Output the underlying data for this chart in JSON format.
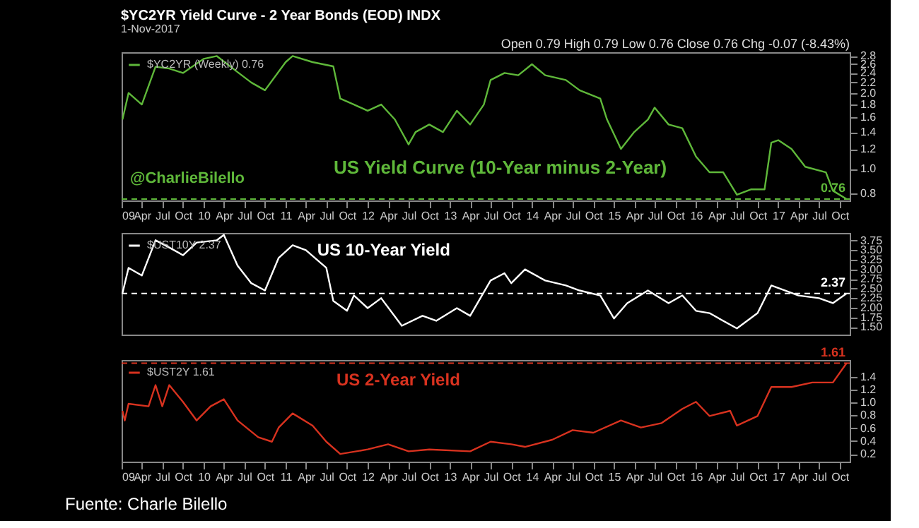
{
  "chart_data": [
    {
      "type": "line",
      "title": "$YC2YR Yield Curve - 2 Year Bonds (EOD) INDX",
      "subtitle": "1-Nov-2017",
      "annotations": [
        "Open 0.79 High 0.79 Low 0.76 Close 0.76 Chg -0.07 (-8.43%)",
        "US Yield Curve (10-Year minus 2-Year)",
        "@CharlieBilello"
      ],
      "x": [
        "2009-01-05",
        "2009-02-01",
        "2009-04-01",
        "2009-06-01",
        "2009-08-01",
        "2009-10-01",
        "2010-01-01",
        "2010-03-01",
        "2010-06-01",
        "2010-08-01",
        "2010-10-01",
        "2011-01-01",
        "2011-02-01",
        "2011-05-01",
        "2011-08-01",
        "2011-09-01",
        "2011-11-01",
        "2012-01-01",
        "2012-03-01",
        "2012-05-01",
        "2012-07-01",
        "2012-08-01",
        "2012-10-01",
        "2012-12-01",
        "2013-02-01",
        "2013-04-01",
        "2013-06-01",
        "2013-07-01",
        "2013-09-01",
        "2013-11-01",
        "2014-01-01",
        "2014-03-01",
        "2014-06-01",
        "2014-08-01",
        "2014-11-01",
        "2014-12-01",
        "2015-02-01",
        "2015-04-01",
        "2015-06-01",
        "2015-07-01",
        "2015-09-01",
        "2015-11-01",
        "2016-01-01",
        "2016-03-01",
        "2016-05-01",
        "2016-07-01",
        "2016-09-01",
        "2016-11-01",
        "2016-12-01",
        "2017-01-01",
        "2017-03-01",
        "2017-05-01",
        "2017-08-01",
        "2017-09-01",
        "2017-11-01"
      ],
      "series": [
        {
          "name": "$YC2YR (Weekly) 0.76",
          "color": "#5fb83a",
          "values": [
            1.57,
            2.0,
            1.8,
            2.54,
            2.5,
            2.4,
            2.73,
            2.8,
            2.42,
            2.2,
            2.05,
            2.65,
            2.8,
            2.65,
            2.55,
            1.9,
            1.8,
            1.7,
            1.8,
            1.57,
            1.25,
            1.4,
            1.5,
            1.4,
            1.7,
            1.5,
            1.8,
            2.25,
            2.4,
            2.35,
            2.6,
            2.35,
            2.25,
            2.05,
            1.9,
            1.57,
            1.2,
            1.4,
            1.57,
            1.75,
            1.5,
            1.45,
            1.12,
            0.97,
            0.97,
            0.79,
            0.83,
            0.83,
            1.27,
            1.3,
            1.2,
            1.02,
            0.97,
            0.82,
            0.76
          ]
        }
      ],
      "log": "y",
      "ylim": [
        0.75,
        2.9
      ],
      "yticks": [
        {
          "value": 0.8,
          "label": "0.8"
        },
        {
          "value": 1.0,
          "label": "1.0"
        },
        {
          "value": 1.2,
          "label": "1.2"
        },
        {
          "value": 1.4,
          "label": "1.4"
        },
        {
          "value": 1.6,
          "label": "1.6"
        },
        {
          "value": 1.8,
          "label": "1.8"
        },
        {
          "value": 2.0,
          "label": "2.0"
        },
        {
          "value": 2.2,
          "label": "2.2"
        },
        {
          "value": 2.4,
          "label": "2.4"
        },
        {
          "value": 2.6,
          "label": "2.6"
        },
        {
          "value": 2.8,
          "label": "2.8"
        }
      ],
      "xlim": [
        "2009-01-01",
        "2017-11-15"
      ],
      "xticks": [
        {
          "value": "2009-01",
          "label": "09"
        },
        {
          "value": "2009-04",
          "label": "Apr"
        },
        {
          "value": "2009-07",
          "label": "Jul"
        },
        {
          "value": "2009-10",
          "label": "Oct"
        },
        {
          "value": "2010-01",
          "label": "10"
        },
        {
          "value": "2010-04",
          "label": "Apr"
        },
        {
          "value": "2010-07",
          "label": "Jul"
        },
        {
          "value": "2010-10",
          "label": "Oct"
        },
        {
          "value": "2011-01",
          "label": "11"
        },
        {
          "value": "2011-04",
          "label": "Apr"
        },
        {
          "value": "2011-07",
          "label": "Jul"
        },
        {
          "value": "2011-10",
          "label": "Oct"
        },
        {
          "value": "2012-01",
          "label": "12"
        },
        {
          "value": "2012-04",
          "label": "Apr"
        },
        {
          "value": "2012-07",
          "label": "Jul"
        },
        {
          "value": "2012-10",
          "label": "Oct"
        },
        {
          "value": "2013-01",
          "label": "13"
        },
        {
          "value": "2013-04",
          "label": "Apr"
        },
        {
          "value": "2013-07",
          "label": "Jul"
        },
        {
          "value": "2013-10",
          "label": "Oct"
        },
        {
          "value": "2014-01",
          "label": "14"
        },
        {
          "value": "2014-04",
          "label": "Apr"
        },
        {
          "value": "2014-07",
          "label": "Jul"
        },
        {
          "value": "2014-10",
          "label": "Oct"
        },
        {
          "value": "2015-01",
          "label": "15"
        },
        {
          "value": "2015-04",
          "label": "Apr"
        },
        {
          "value": "2015-07",
          "label": "Jul"
        },
        {
          "value": "2015-10",
          "label": "Oct"
        },
        {
          "value": "2016-01",
          "label": "16"
        },
        {
          "value": "2016-04",
          "label": "Apr"
        },
        {
          "value": "2016-07",
          "label": "Jul"
        },
        {
          "value": "2016-10",
          "label": "Oct"
        },
        {
          "value": "2017-01",
          "label": "17"
        },
        {
          "value": "2017-04",
          "label": "Apr"
        },
        {
          "value": "2017-07",
          "label": "Jul"
        },
        {
          "value": "2017-10",
          "label": "Oct"
        }
      ],
      "ref_lines": [
        {
          "axis": "y",
          "value": 0.76,
          "label": "0.76",
          "color": "#5fb83a",
          "line_style": "dashed"
        }
      ],
      "legend": "top left",
      "grid": false
    },
    {
      "type": "line",
      "annotations": [
        "US 10-Year Yield"
      ],
      "x": [
        "2009-01-05",
        "2009-02-01",
        "2009-04-01",
        "2009-06-01",
        "2009-08-01",
        "2009-10-01",
        "2009-12-01",
        "2010-03-01",
        "2010-04-01",
        "2010-06-01",
        "2010-08-01",
        "2010-10-01",
        "2010-12-01",
        "2011-02-01",
        "2011-04-01",
        "2011-07-01",
        "2011-08-01",
        "2011-10-01",
        "2011-11-01",
        "2012-01-01",
        "2012-03-01",
        "2012-06-01",
        "2012-09-01",
        "2012-11-01",
        "2013-02-01",
        "2013-04-01",
        "2013-07-01",
        "2013-09-01",
        "2013-10-01",
        "2013-12-01",
        "2014-03-01",
        "2014-06-01",
        "2014-08-01",
        "2014-11-01",
        "2015-01-01",
        "2015-03-01",
        "2015-06-01",
        "2015-09-01",
        "2015-11-01",
        "2016-01-01",
        "2016-03-01",
        "2016-07-01",
        "2016-10-01",
        "2016-12-01",
        "2017-02-01",
        "2017-04-01",
        "2017-07-01",
        "2017-09-01",
        "2017-11-01"
      ],
      "series": [
        {
          "name": "$UST10Y 2.37",
          "color": "#ffffff",
          "values": [
            2.38,
            3.04,
            2.84,
            3.76,
            3.57,
            3.37,
            3.7,
            3.76,
            3.9,
            3.1,
            2.64,
            2.45,
            3.3,
            3.63,
            3.5,
            3.04,
            2.18,
            1.92,
            2.32,
            1.99,
            2.25,
            1.53,
            1.79,
            1.66,
            1.99,
            1.79,
            2.71,
            2.9,
            2.64,
            3.0,
            2.71,
            2.58,
            2.45,
            2.32,
            1.72,
            2.12,
            2.45,
            2.12,
            2.32,
            1.92,
            1.86,
            1.46,
            1.86,
            2.58,
            2.45,
            2.32,
            2.25,
            2.12,
            2.37
          ]
        }
      ],
      "ylim": [
        1.3,
        3.95
      ],
      "yticks": [
        {
          "value": 1.5,
          "label": "1.50"
        },
        1.75,
        {
          "value": 2.0,
          "label": "2.00"
        },
        2.25,
        {
          "value": 2.5,
          "label": "2.50"
        },
        2.75,
        {
          "value": 3.0,
          "label": "3.00"
        },
        3.25,
        {
          "value": 3.5,
          "label": "3.50"
        },
        3.75
      ],
      "xlim": [
        "2009-01-01",
        "2017-11-15"
      ],
      "tick_labels": "y",
      "ref_lines": [
        {
          "axis": "y",
          "value": 2.37,
          "label": "2.37",
          "color": "#ffffff",
          "line_style": "dashed"
        }
      ],
      "legend": "top left",
      "grid": false
    },
    {
      "type": "line",
      "annotations": [
        "US 2-Year Yield",
        "Fuente: Charle Bilello"
      ],
      "x": [
        "2009-01-05",
        "2009-01-15",
        "2009-02-01",
        "2009-05-01",
        "2009-06-01",
        "2009-07-01",
        "2009-08-01",
        "2009-10-01",
        "2009-12-01",
        "2010-02-01",
        "2010-04-01",
        "2010-06-01",
        "2010-09-01",
        "2010-11-01",
        "2010-12-01",
        "2011-02-01",
        "2011-05-01",
        "2011-07-01",
        "2011-09-01",
        "2012-01-01",
        "2012-04-01",
        "2012-07-01",
        "2012-10-01",
        "2013-04-01",
        "2013-07-01",
        "2013-10-01",
        "2013-12-01",
        "2014-04-01",
        "2014-07-01",
        "2014-10-01",
        "2015-02-01",
        "2015-05-01",
        "2015-08-01",
        "2015-11-01",
        "2016-01-01",
        "2016-03-01",
        "2016-06-01",
        "2016-07-01",
        "2016-10-01",
        "2016-12-01",
        "2017-03-01",
        "2017-06-01",
        "2017-09-01",
        "2017-11-01"
      ],
      "series": [
        {
          "name": "$UST2Y 1.61",
          "color": "#d8321f",
          "values": [
            0.87,
            0.72,
            0.98,
            0.94,
            1.27,
            0.94,
            1.27,
            1.01,
            0.72,
            0.94,
            1.05,
            0.72,
            0.46,
            0.39,
            0.61,
            0.83,
            0.64,
            0.39,
            0.2,
            0.27,
            0.35,
            0.24,
            0.27,
            0.24,
            0.39,
            0.35,
            0.31,
            0.42,
            0.57,
            0.53,
            0.72,
            0.61,
            0.68,
            0.9,
            1.01,
            0.79,
            0.87,
            0.64,
            0.79,
            1.24,
            1.24,
            1.31,
            1.31,
            1.61
          ]
        }
      ],
      "ylim": [
        0.08,
        1.66
      ],
      "yticks": [
        0.2,
        0.4,
        0.6,
        0.8,
        {
          "value": 1.0,
          "label": "1.0"
        },
        1.2,
        1.4
      ],
      "xlim": [
        "2009-01-01",
        "2017-11-15"
      ],
      "xticks": [
        {
          "value": "2009-01",
          "label": "09"
        },
        {
          "value": "2009-04",
          "label": "Apr"
        },
        {
          "value": "2009-07",
          "label": "Jul"
        },
        {
          "value": "2009-10",
          "label": "Oct"
        },
        {
          "value": "2010-01",
          "label": "10"
        },
        {
          "value": "2010-04",
          "label": "Apr"
        },
        {
          "value": "2010-07",
          "label": "Jul"
        },
        {
          "value": "2010-10",
          "label": "Oct"
        },
        {
          "value": "2011-01",
          "label": "11"
        },
        {
          "value": "2011-04",
          "label": "Apr"
        },
        {
          "value": "2011-07",
          "label": "Jul"
        },
        {
          "value": "2011-10",
          "label": "Oct"
        },
        {
          "value": "2012-01",
          "label": "12"
        },
        {
          "value": "2012-04",
          "label": "Apr"
        },
        {
          "value": "2012-07",
          "label": "Jul"
        },
        {
          "value": "2012-10",
          "label": "Oct"
        },
        {
          "value": "2013-01",
          "label": "13"
        },
        {
          "value": "2013-04",
          "label": "Apr"
        },
        {
          "value": "2013-07",
          "label": "Jul"
        },
        {
          "value": "2013-10",
          "label": "Oct"
        },
        {
          "value": "2014-01",
          "label": "14"
        },
        {
          "value": "2014-04",
          "label": "Apr"
        },
        {
          "value": "2014-07",
          "label": "Jul"
        },
        {
          "value": "2014-10",
          "label": "Oct"
        },
        {
          "value": "2015-01",
          "label": "15"
        },
        {
          "value": "2015-04",
          "label": "Apr"
        },
        {
          "value": "2015-07",
          "label": "Jul"
        },
        {
          "value": "2015-10",
          "label": "Oct"
        },
        {
          "value": "2016-01",
          "label": "16"
        },
        {
          "value": "2016-04",
          "label": "Apr"
        },
        {
          "value": "2016-07",
          "label": "Jul"
        },
        {
          "value": "2016-10",
          "label": "Oct"
        },
        {
          "value": "2017-01",
          "label": "17"
        },
        {
          "value": "2017-04",
          "label": "Apr"
        },
        {
          "value": "2017-07",
          "label": "Jul"
        },
        {
          "value": "2017-10",
          "label": "Oct"
        }
      ],
      "ref_lines": [
        {
          "axis": "y",
          "value": 1.61,
          "label": "1.61",
          "color": "#d8321f",
          "line_style": "dashed"
        }
      ],
      "legend": "top left",
      "grid": false
    }
  ]
}
